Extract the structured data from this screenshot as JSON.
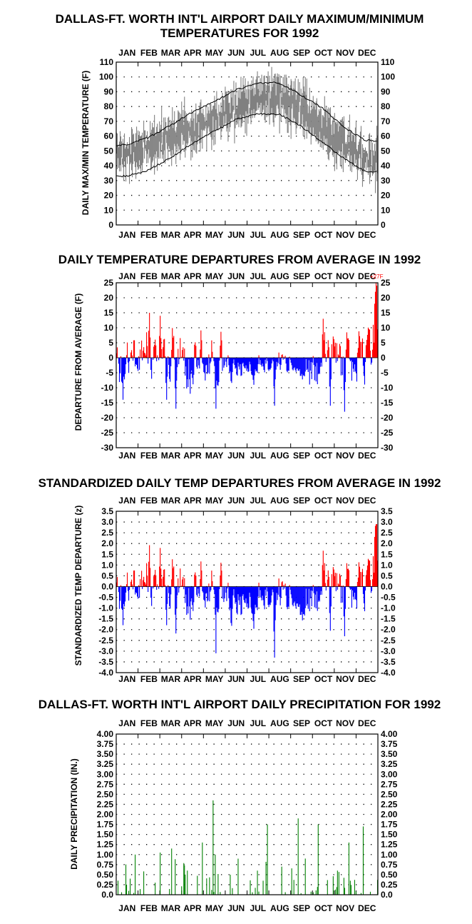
{
  "colors": {
    "hot": "#ff0000",
    "cold": "#0000ff",
    "temp_band": "#808080",
    "normal_line": "#000000",
    "precip": "#008000"
  },
  "months": [
    "JAN",
    "FEB",
    "MAR",
    "APR",
    "MAY",
    "JUN",
    "JUL",
    "AUG",
    "SEP",
    "OCT",
    "NOV",
    "DEC"
  ],
  "chart_data": [
    {
      "type": "area",
      "title_lines": [
        "DALLAS-FT. WORTH INT'L AIRPORT DAILY MAXIMUM/MINIMUM",
        "TEMPERATURES FOR 1992"
      ],
      "ylabel": "DAILY MAX/MIN TEMPERATURE (F)",
      "ylim": [
        0,
        110
      ],
      "yticks": [
        0,
        10,
        20,
        30,
        40,
        50,
        60,
        70,
        80,
        90,
        100,
        110
      ],
      "grid": true,
      "series": [
        {
          "kind": "daily-range",
          "month_high": [
            58,
            62,
            70,
            76,
            82,
            90,
            95,
            96,
            90,
            78,
            64,
            55
          ],
          "month_low": [
            38,
            44,
            50,
            55,
            63,
            70,
            75,
            75,
            68,
            55,
            44,
            37
          ]
        },
        {
          "kind": "normal-line",
          "month_values": [
            54,
            59,
            67,
            76,
            83,
            91,
            96,
            96,
            88,
            79,
            66,
            57
          ]
        },
        {
          "kind": "normal-line",
          "month_values": [
            33,
            37,
            45,
            55,
            63,
            71,
            75,
            75,
            67,
            56,
            45,
            36
          ]
        }
      ]
    },
    {
      "type": "bar",
      "title": "DAILY TEMPERATURE DEPARTURES FROM AVERAGE IN 1992",
      "ylabel": "DEPARTURE FROM AVERAGE (F)",
      "ylim": [
        -30,
        25
      ],
      "yticks": [
        25,
        20,
        15,
        10,
        5,
        0,
        -5,
        -10,
        -15,
        -20,
        -25,
        -30
      ],
      "grid": true,
      "annotation": "+27F",
      "extremes": [
        {
          "day": 10,
          "value": -14
        },
        {
          "day": 47,
          "value": 15
        },
        {
          "day": 71,
          "value": -14
        },
        {
          "day": 84,
          "value": -17
        },
        {
          "day": 104,
          "value": -12
        },
        {
          "day": 140,
          "value": -17
        },
        {
          "day": 222,
          "value": -16
        },
        {
          "day": 290,
          "value": 13
        },
        {
          "day": 300,
          "value": -16
        },
        {
          "day": 320,
          "value": -18
        },
        {
          "day": 364,
          "value": 27
        }
      ]
    },
    {
      "type": "bar",
      "title": "STANDARDIZED DAILY TEMP DEPARTURES FROM AVERAGE IN 1992",
      "ylabel": "STANDARDIZED TEMP DEPARTURE (z)",
      "ylim": [
        -4.0,
        3.5
      ],
      "yticks": [
        "3.5",
        "3.0",
        "2.5",
        "2.0",
        "1.5",
        "1.0",
        "0.5",
        "0.0",
        "-0.5",
        "-1.0",
        "-1.5",
        "-2.0",
        "-2.5",
        "-3.0",
        "-3.5",
        "-4.0"
      ],
      "grid": true
    },
    {
      "type": "bar",
      "title": "DALLAS-FT. WORTH INT'L AIRPORT DAILY PRECIPITATION FOR 1992",
      "ylabel": "DAILY PRECIPITATION (IN.)",
      "ylim": [
        0,
        4.0
      ],
      "yticks": [
        "0.0",
        "0.25",
        "0.50",
        "0.75",
        "1.00",
        "1.25",
        "1.50",
        "1.75",
        "2.00",
        "2.25",
        "2.50",
        "2.75",
        "3.00",
        "3.25",
        "3.50",
        "3.75",
        "4.00"
      ],
      "grid": true,
      "values": [
        {
          "day": 3,
          "value": 0.35
        },
        {
          "day": 15,
          "value": 0.25
        },
        {
          "day": 20,
          "value": 0.4
        },
        {
          "day": 27,
          "value": 1.0
        },
        {
          "day": 55,
          "value": 0.3
        },
        {
          "day": 62,
          "value": 1.05
        },
        {
          "day": 78,
          "value": 1.15
        },
        {
          "day": 97,
          "value": 0.5
        },
        {
          "day": 121,
          "value": 1.3
        },
        {
          "day": 136,
          "value": 2.35
        },
        {
          "day": 139,
          "value": 1.0
        },
        {
          "day": 160,
          "value": 0.5
        },
        {
          "day": 198,
          "value": 0.6
        },
        {
          "day": 212,
          "value": 1.75
        },
        {
          "day": 232,
          "value": 0.7
        },
        {
          "day": 255,
          "value": 1.9
        },
        {
          "day": 265,
          "value": 0.9
        },
        {
          "day": 283,
          "value": 1.75
        },
        {
          "day": 310,
          "value": 0.6
        },
        {
          "day": 326,
          "value": 1.3
        },
        {
          "day": 346,
          "value": 1.7
        }
      ]
    }
  ]
}
